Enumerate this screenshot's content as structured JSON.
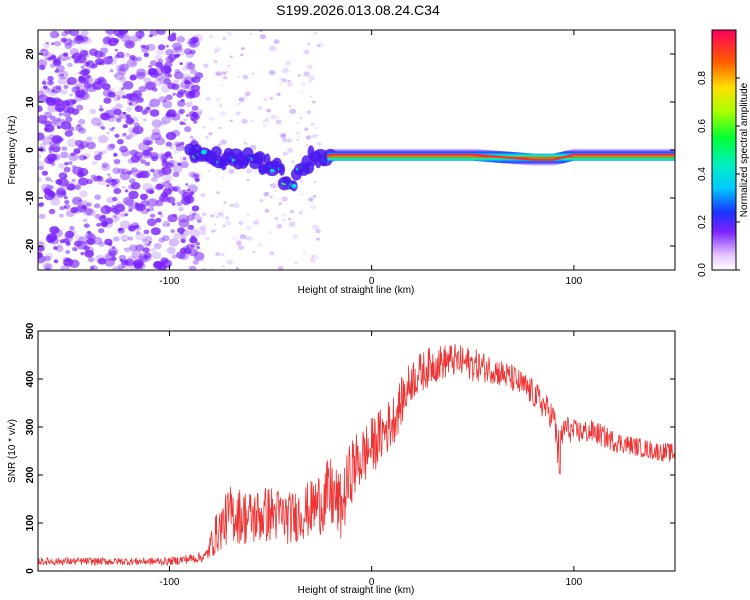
{
  "title": "S199.2026.013.08.24.C34",
  "colors": {
    "snr_line": "#ee3333",
    "scatter": "#7a22ff",
    "axis": "#000000"
  },
  "chart_data": [
    {
      "type": "heatmap",
      "title": "S199.2026.013.08.24.C34",
      "xlabel": "Height of straight line (km)",
      "ylabel": "Frequency (Hz)",
      "xlim": [
        -165,
        150
      ],
      "ylim": [
        -25,
        25
      ],
      "xticks": [
        -100,
        0,
        100
      ],
      "xtick_labels": [
        "-100",
        "0",
        "100"
      ],
      "yticks": [
        -20,
        -10,
        0,
        10,
        20
      ],
      "ytick_labels": [
        "-20",
        "-10",
        "0",
        "10",
        "20"
      ],
      "colorbar": {
        "label": "Normalized spectral amplitude",
        "range": [
          0,
          1
        ],
        "ticks": [
          0.0,
          0.2,
          0.4,
          0.6,
          0.8
        ],
        "tick_labels": [
          "0.0",
          "0.2",
          "0.4",
          "0.6",
          "0.8"
        ]
      },
      "ridge": {
        "description": "dominant frequency ridge",
        "x": [
          -90,
          -75,
          -60,
          -50,
          -40,
          -30,
          -20,
          0,
          50,
          80,
          90,
          100,
          150
        ],
        "frequency_hz": [
          -1,
          -1.5,
          -2,
          -3,
          -7,
          -2,
          -1,
          -1,
          -1,
          -2,
          -2,
          -1,
          -1
        ]
      }
    },
    {
      "type": "line",
      "xlabel": "Height of straight line (km)",
      "ylabel": "SNR (10 * v/v)",
      "xlim": [
        -165,
        150
      ],
      "ylim": [
        0,
        500
      ],
      "xticks": [
        -100,
        0,
        100
      ],
      "xtick_labels": [
        "-100",
        "0",
        "100"
      ],
      "yticks": [
        0,
        100,
        200,
        300,
        400,
        500
      ],
      "ytick_labels": [
        "0",
        "100",
        "200",
        "300",
        "400",
        "500"
      ],
      "envelope": {
        "x": [
          -165,
          -100,
          -82,
          -78,
          -70,
          -60,
          -50,
          -40,
          -30,
          -20,
          -15,
          -10,
          0,
          10,
          20,
          30,
          40,
          50,
          60,
          70,
          80,
          90,
          93,
          95,
          100,
          110,
          120,
          130,
          140,
          150
        ],
        "snr_mean": [
          20,
          20,
          30,
          70,
          120,
          110,
          120,
          110,
          130,
          160,
          130,
          210,
          260,
          310,
          400,
          430,
          440,
          430,
          420,
          400,
          370,
          320,
          230,
          300,
          290,
          290,
          270,
          260,
          250,
          245
        ],
        "snr_spread": [
          8,
          8,
          12,
          40,
          60,
          60,
          60,
          55,
          60,
          80,
          70,
          70,
          60,
          55,
          45,
          40,
          35,
          35,
          30,
          30,
          30,
          30,
          60,
          30,
          25,
          25,
          22,
          20,
          20,
          20
        ]
      }
    }
  ]
}
